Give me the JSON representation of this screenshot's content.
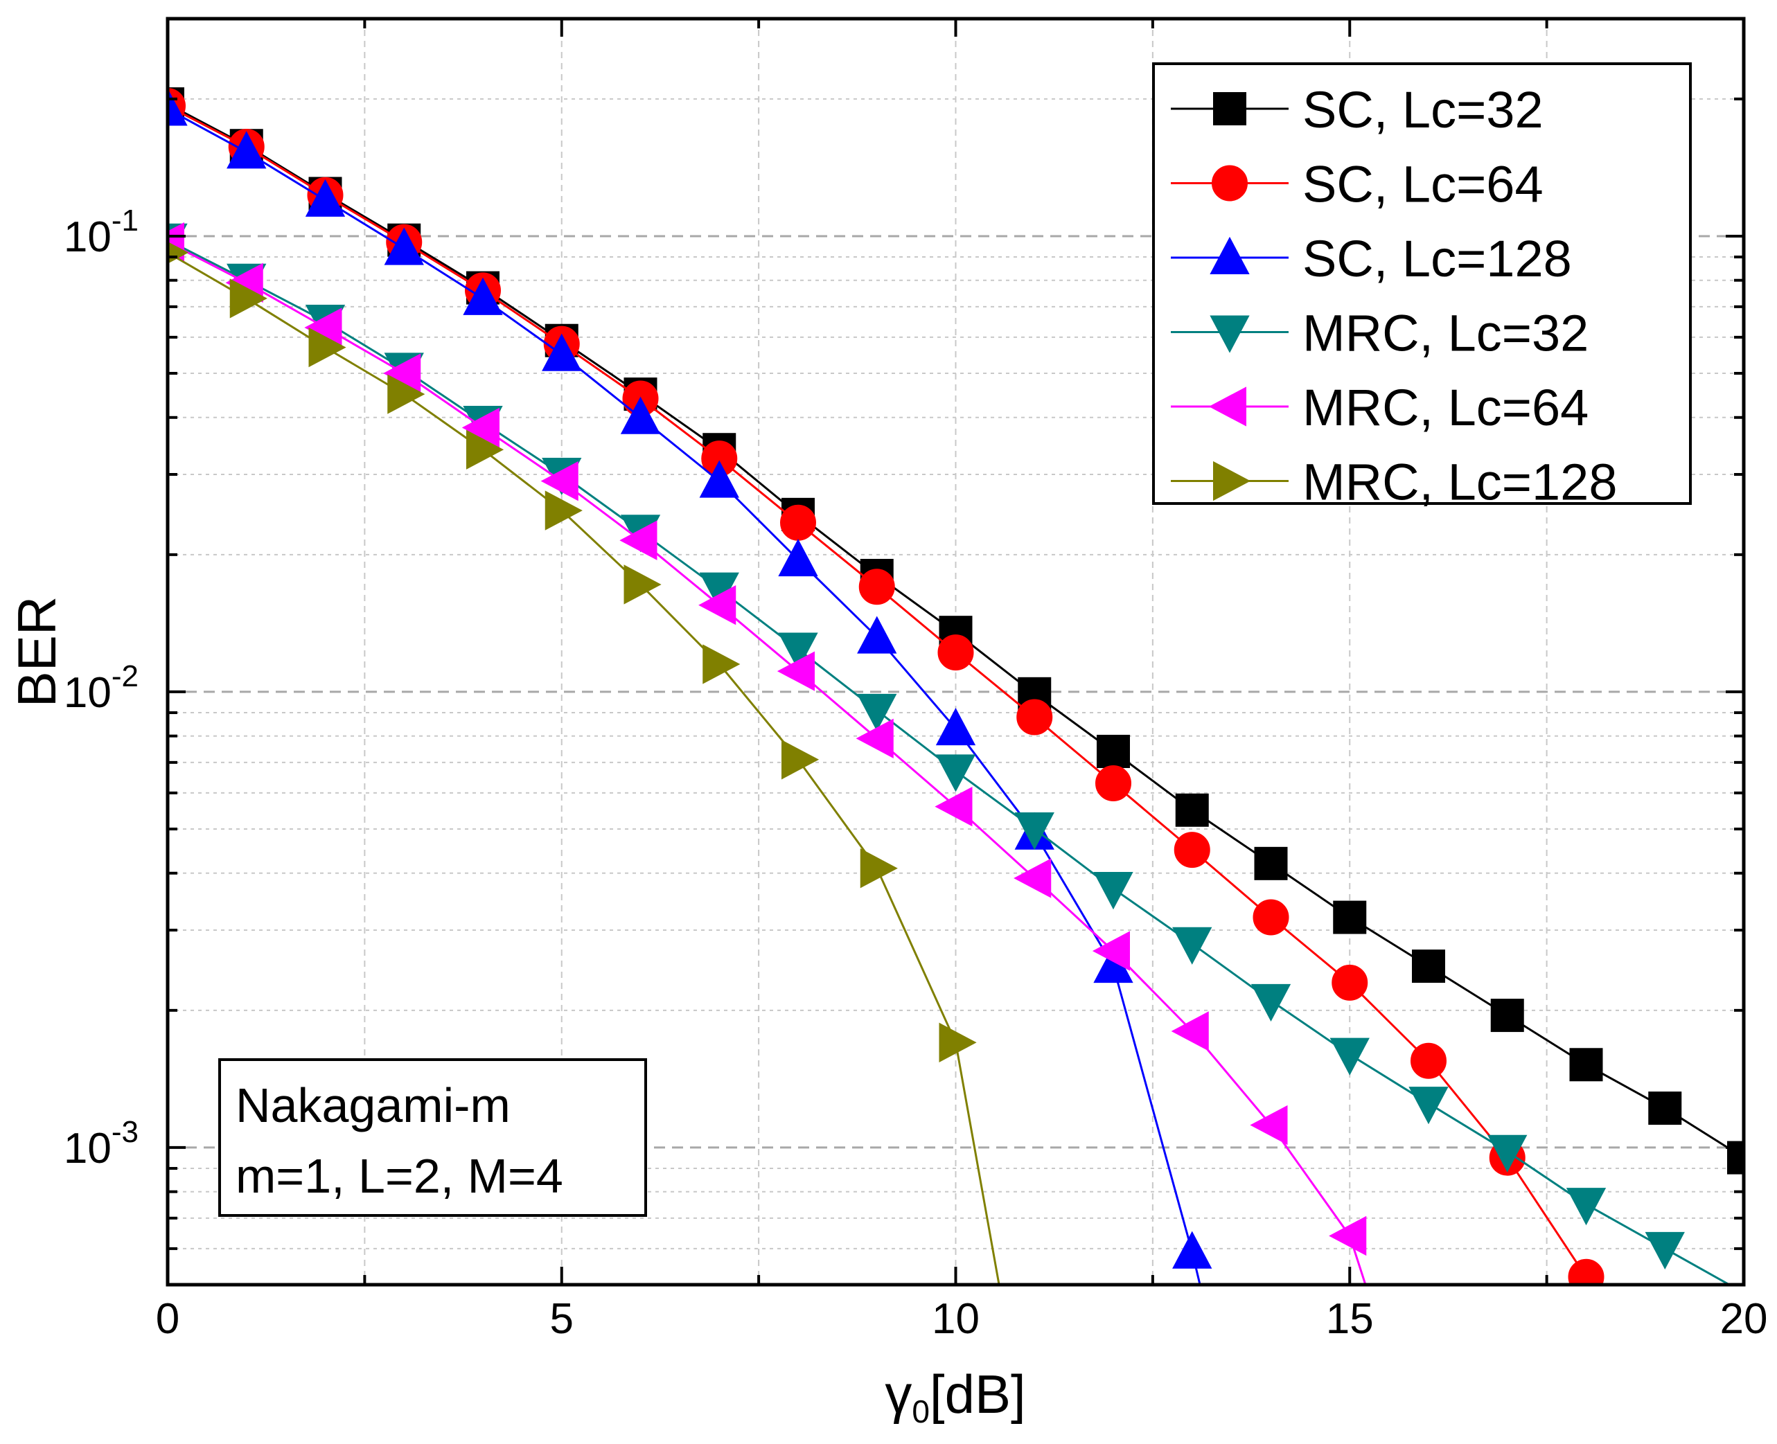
{
  "chart_data": {
    "type": "line",
    "xlabel": "γ",
    "xlabel_sub": "0",
    "xlabel_unit": "[dB]",
    "ylabel": "BER",
    "xlim": [
      0,
      20
    ],
    "ylim": [
      0.0005,
      0.3
    ],
    "yscale": "log",
    "grid": true,
    "legend_position": "top-right",
    "x_ticks": [
      "0",
      "5",
      "10",
      "15",
      "20"
    ],
    "y_ticks": [
      {
        "base": "10",
        "exp": "-1"
      },
      {
        "base": "10",
        "exp": "-2"
      },
      {
        "base": "10",
        "exp": "-3"
      }
    ],
    "annotation": [
      "Nakagami-m",
      "m=1, L=2, M=4"
    ],
    "series": [
      {
        "name": "SC, Lc=32",
        "color": "#000000",
        "marker": "square",
        "x": [
          0,
          1,
          2,
          3,
          4,
          5,
          6,
          7,
          8,
          9,
          10,
          11,
          12,
          13,
          14,
          15,
          16,
          17,
          18,
          19,
          20
        ],
        "y": [
          0.195,
          0.158,
          0.124,
          0.098,
          0.077,
          0.059,
          0.045,
          0.034,
          0.0245,
          0.018,
          0.0135,
          0.0099,
          0.0074,
          0.0055,
          0.0042,
          0.0032,
          0.0025,
          0.00195,
          0.00152,
          0.00122,
          0.00095
        ]
      },
      {
        "name": "SC, Lc=64",
        "color": "#ff0000",
        "marker": "circle",
        "x": [
          0,
          1,
          2,
          3,
          4,
          5,
          6,
          7,
          8,
          9,
          10,
          11,
          12,
          13,
          14,
          15,
          16,
          17,
          18
        ],
        "y": [
          0.193,
          0.157,
          0.123,
          0.097,
          0.076,
          0.058,
          0.044,
          0.0325,
          0.0235,
          0.017,
          0.0122,
          0.0088,
          0.0063,
          0.0045,
          0.0032,
          0.0023,
          0.00155,
          0.00095,
          0.00052
        ]
      },
      {
        "name": "SC, Lc=128",
        "color": "#0000ff",
        "marker": "triangle-up",
        "x": [
          0,
          1,
          2,
          3,
          4,
          5,
          6,
          7,
          8,
          9,
          10,
          11,
          12,
          13,
          13.1
        ],
        "y": [
          0.19,
          0.153,
          0.12,
          0.094,
          0.073,
          0.055,
          0.04,
          0.029,
          0.0195,
          0.0132,
          0.0083,
          0.0049,
          0.0025,
          0.00059,
          0.0005
        ]
      },
      {
        "name": "MRC, Lc=32",
        "color": "#008080",
        "marker": "triangle-down",
        "x": [
          0,
          1,
          2,
          3,
          4,
          5,
          6,
          7,
          8,
          9,
          10,
          11,
          12,
          13,
          14,
          15,
          16,
          17,
          18,
          19,
          20
        ],
        "y": [
          0.098,
          0.08,
          0.065,
          0.051,
          0.039,
          0.03,
          0.0225,
          0.0168,
          0.0124,
          0.0091,
          0.0067,
          0.005,
          0.0037,
          0.0028,
          0.0021,
          0.0016,
          0.00125,
          0.00098,
          0.00075,
          0.0006,
          0.00048
        ]
      },
      {
        "name": "MRC, Lc=64",
        "color": "#ff00ff",
        "marker": "triangle-left",
        "x": [
          0,
          1,
          2,
          3,
          4,
          5,
          6,
          7,
          8,
          9,
          10,
          11,
          12,
          13,
          14,
          15,
          15.2
        ],
        "y": [
          0.097,
          0.079,
          0.063,
          0.05,
          0.038,
          0.029,
          0.0215,
          0.0155,
          0.0111,
          0.0079,
          0.0056,
          0.0039,
          0.0027,
          0.0018,
          0.00112,
          0.00064,
          0.0005
        ]
      },
      {
        "name": "MRC, Lc=128",
        "color": "#808000",
        "marker": "triangle-right",
        "x": [
          0,
          1,
          2,
          3,
          4,
          5,
          6,
          7,
          8,
          9,
          10,
          10.55
        ],
        "y": [
          0.092,
          0.073,
          0.057,
          0.045,
          0.034,
          0.025,
          0.0172,
          0.0115,
          0.0071,
          0.0041,
          0.0017,
          0.0005
        ]
      }
    ]
  }
}
